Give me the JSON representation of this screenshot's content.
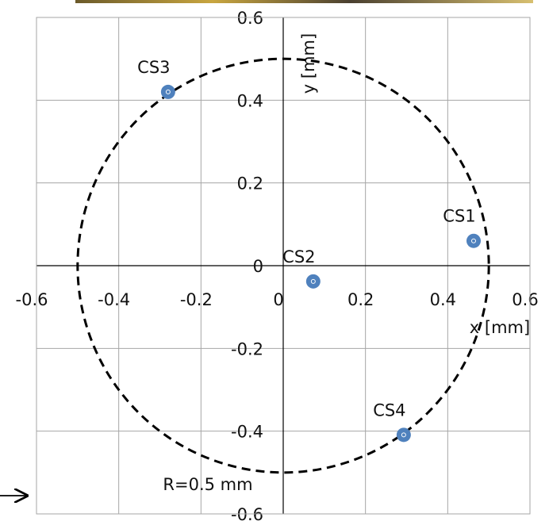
{
  "chart_data": {
    "type": "scatter",
    "x_label": "x [mm]",
    "y_label": "y [mm]",
    "point_labels": [
      "CS1",
      "CS2",
      "CS3",
      "CS4"
    ],
    "x": [
      0.463,
      0.073,
      -0.28,
      0.293
    ],
    "values": [
      0.06,
      -0.038,
      0.42,
      -0.409
    ],
    "color": "#4f81bd",
    "circle_radius": 0.5,
    "annotation": "R=0.5 mm",
    "xlim": [
      -0.6,
      0.6
    ],
    "ylim": [
      -0.6,
      0.6
    ],
    "xticks": [
      -0.6,
      -0.4,
      -0.2,
      0,
      0.2,
      0.4,
      0.6
    ],
    "yticks": [
      -0.6,
      -0.4,
      -0.2,
      0,
      0.2,
      0.4,
      0.6
    ],
    "grid": true
  }
}
